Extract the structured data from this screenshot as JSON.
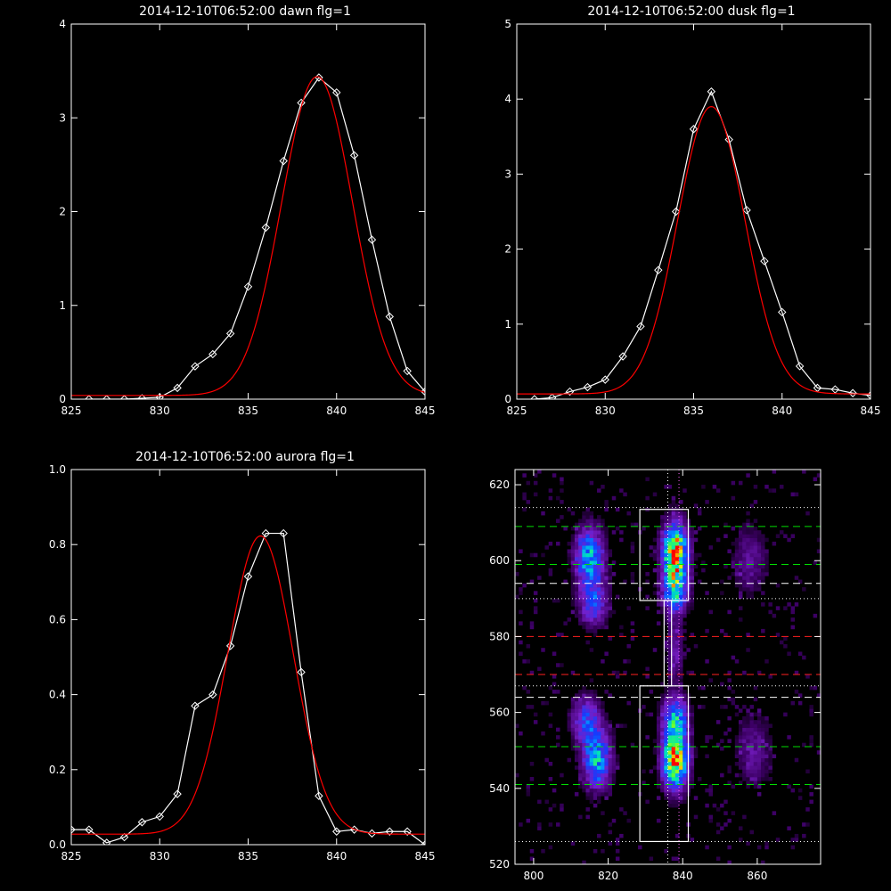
{
  "chart_data": [
    {
      "type": "line",
      "title": "2014-12-10T06:52:00 dawn flg=1",
      "xlim": [
        825,
        845
      ],
      "ylim": [
        0,
        4
      ],
      "xticks": [
        825,
        830,
        835,
        840,
        845
      ],
      "yticks": [
        0,
        1,
        2,
        3,
        4
      ],
      "series": [
        {
          "color": "#ffffff",
          "marker": "diamond",
          "x": [
            826,
            827,
            828,
            829,
            830,
            831,
            832,
            833,
            834,
            835,
            836,
            837,
            838,
            839,
            840,
            841,
            842,
            843,
            844,
            845
          ],
          "y": [
            0.0,
            0.0,
            0.0,
            0.01,
            0.02,
            0.12,
            0.35,
            0.48,
            0.7,
            1.2,
            1.83,
            2.54,
            3.16,
            3.43,
            3.27,
            2.6,
            1.7,
            0.88,
            0.3,
            0.08
          ]
        },
        {
          "color": "#ff0000",
          "fit": "gaussian",
          "amplitude": 3.4,
          "center": 838.9,
          "sigma": 2.0,
          "offset": 0.04
        }
      ]
    },
    {
      "type": "line",
      "title": "2014-12-10T06:52:00 dusk flg=1",
      "xlim": [
        825,
        845
      ],
      "ylim": [
        0,
        5
      ],
      "xticks": [
        825,
        830,
        835,
        840,
        845
      ],
      "yticks": [
        0,
        1,
        2,
        3,
        4,
        5
      ],
      "series": [
        {
          "color": "#ffffff",
          "marker": "diamond",
          "x": [
            826,
            827,
            828,
            829,
            830,
            831,
            832,
            833,
            834,
            835,
            836,
            837,
            838,
            839,
            840,
            841,
            842,
            843,
            844,
            845
          ],
          "y": [
            0.0,
            0.02,
            0.1,
            0.16,
            0.26,
            0.57,
            0.97,
            1.72,
            2.5,
            3.6,
            4.1,
            3.46,
            2.52,
            1.84,
            1.16,
            0.44,
            0.15,
            0.13,
            0.08,
            0.05
          ]
        },
        {
          "color": "#ff0000",
          "fit": "gaussian",
          "amplitude": 3.83,
          "center": 836.0,
          "sigma": 1.9,
          "offset": 0.07
        }
      ]
    },
    {
      "type": "line",
      "title": "2014-12-10T06:52:00 aurora flg=1",
      "xlim": [
        825,
        845
      ],
      "ylim": [
        0,
        1.0
      ],
      "xticks": [
        825,
        830,
        835,
        840,
        845
      ],
      "yticks": [
        0.0,
        0.2,
        0.4,
        0.6,
        0.8,
        1.0
      ],
      "yticklabels": [
        "0.0",
        "0.2",
        "0.4",
        "0.6",
        "0.8",
        "1.0"
      ],
      "series": [
        {
          "color": "#ffffff",
          "marker": "diamond",
          "x": [
            825,
            826,
            827,
            828,
            829,
            830,
            831,
            832,
            833,
            834,
            835,
            836,
            837,
            838,
            839,
            840,
            841,
            842,
            843,
            844,
            845
          ],
          "y": [
            0.04,
            0.04,
            0.005,
            0.02,
            0.06,
            0.075,
            0.135,
            0.37,
            0.4,
            0.53,
            0.715,
            0.83,
            0.83,
            0.46,
            0.13,
            0.035,
            0.04,
            0.03,
            0.035,
            0.035,
            0.0
          ]
        },
        {
          "color": "#ff0000",
          "fit": "gaussian",
          "amplitude": 0.795,
          "center": 835.7,
          "sigma": 1.85,
          "offset": 0.028
        }
      ]
    },
    {
      "type": "heatmap",
      "title": "",
      "xlim": [
        795,
        877
      ],
      "ylim": [
        520,
        624
      ],
      "xticks": [
        800,
        820,
        840,
        860
      ],
      "yticks": [
        520,
        540,
        560,
        580,
        600,
        620
      ],
      "blobs": [
        {
          "x": 815,
          "y": 601,
          "sx": 2.5,
          "sy": 5,
          "amp": 0.55
        },
        {
          "x": 816,
          "y": 589,
          "sx": 2.5,
          "sy": 4,
          "amp": 0.35
        },
        {
          "x": 817,
          "y": 548,
          "sx": 2.5,
          "sy": 5,
          "amp": 0.55
        },
        {
          "x": 814,
          "y": 558,
          "sx": 2.5,
          "sy": 4,
          "amp": 0.35
        },
        {
          "x": 838,
          "y": 602,
          "sx": 2.2,
          "sy": 5,
          "amp": 1.0
        },
        {
          "x": 838,
          "y": 592,
          "sx": 2.2,
          "sy": 3.5,
          "amp": 0.55
        },
        {
          "x": 838,
          "y": 548,
          "sx": 2.2,
          "sy": 5,
          "amp": 1.0
        },
        {
          "x": 838,
          "y": 559,
          "sx": 2.2,
          "sy": 3.5,
          "amp": 0.5
        },
        {
          "x": 858,
          "y": 600,
          "sx": 3,
          "sy": 6,
          "amp": 0.15
        },
        {
          "x": 859,
          "y": 550,
          "sx": 3,
          "sy": 6,
          "amp": 0.15
        },
        {
          "x": 838,
          "y": 577,
          "sx": 1.5,
          "sy": 6,
          "amp": 0.18
        }
      ],
      "boxes": [
        {
          "x0": 828.5,
          "x1": 841.5,
          "y0": 589.5,
          "y1": 613.5
        },
        {
          "x0": 828.5,
          "x1": 841.5,
          "y0": 526,
          "y1": 567
        },
        {
          "x0": 835,
          "x1": 837,
          "y0": 567,
          "y1": 589.5
        }
      ],
      "hlines": [
        {
          "y": 614,
          "color": "#ffffff",
          "style": "dotted"
        },
        {
          "y": 609,
          "color": "#00dd00",
          "style": "dashed"
        },
        {
          "y": 599,
          "color": "#00dd00",
          "style": "dashed"
        },
        {
          "y": 594,
          "color": "#ffffff",
          "style": "dashed"
        },
        {
          "y": 590,
          "color": "#ffffff",
          "style": "dotted"
        },
        {
          "y": 580,
          "color": "#ff2020",
          "style": "dashed"
        },
        {
          "y": 570,
          "color": "#ff2020",
          "style": "dashed"
        },
        {
          "y": 567,
          "color": "#ffffff",
          "style": "dotted"
        },
        {
          "y": 564,
          "color": "#ffffff",
          "style": "dashed"
        },
        {
          "y": 551,
          "color": "#00dd00",
          "style": "dashed"
        },
        {
          "y": 541,
          "color": "#00dd00",
          "style": "dashed"
        },
        {
          "y": 526,
          "color": "#ffffff",
          "style": "dotted"
        }
      ],
      "vlines": [
        {
          "x": 836,
          "color": "#ffffff",
          "style": "dotted"
        },
        {
          "x": 839,
          "color": "#ff66ff",
          "style": "dotted"
        }
      ]
    }
  ]
}
